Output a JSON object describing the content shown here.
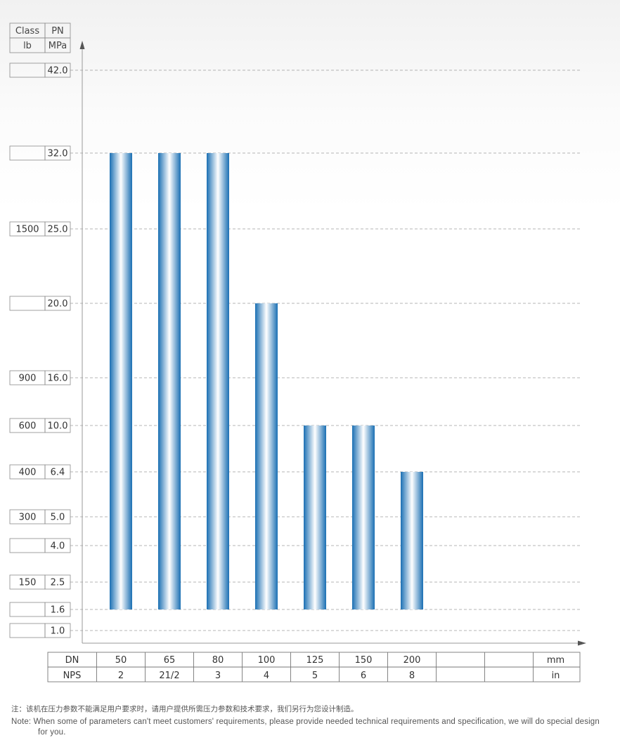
{
  "chart_data": {
    "type": "bar",
    "header": {
      "class_label": "Class",
      "lb_label": "lb",
      "pn_label": "PN",
      "mpa_label": "MPa"
    },
    "y_ticks": [
      {
        "pn": "42.0",
        "class": ""
      },
      {
        "pn": "32.0",
        "class": ""
      },
      {
        "pn": "25.0",
        "class": "1500"
      },
      {
        "pn": "20.0",
        "class": ""
      },
      {
        "pn": "16.0",
        "class": "900"
      },
      {
        "pn": "10.0",
        "class": "600"
      },
      {
        "pn": "6.4",
        "class": "400"
      },
      {
        "pn": "5.0",
        "class": "300"
      },
      {
        "pn": "4.0",
        "class": ""
      },
      {
        "pn": "2.5",
        "class": "150"
      },
      {
        "pn": "1.6",
        "class": ""
      },
      {
        "pn": "1.0",
        "class": ""
      }
    ],
    "categories": [
      "50",
      "65",
      "80",
      "100",
      "125",
      "150",
      "200"
    ],
    "series": [
      {
        "min": [
          1.6,
          1.6,
          1.6,
          1.6,
          1.6,
          1.6,
          1.6
        ],
        "max": [
          32.0,
          32.0,
          32.0,
          20.0,
          10.0,
          10.0,
          6.4
        ]
      }
    ],
    "dn_row": {
      "label": "DN",
      "values": [
        "50",
        "65",
        "80",
        "100",
        "125",
        "150",
        "200",
        "",
        ""
      ],
      "unit": "mm"
    },
    "nps_row": {
      "label": "NPS",
      "values": [
        "2",
        "21/2",
        "3",
        "4",
        "5",
        "6",
        "8",
        "",
        ""
      ],
      "unit": "in"
    },
    "bar_colors": {
      "dark": "#1a6fb3",
      "light": "#ffffff"
    },
    "grid": true
  },
  "note": {
    "zh": "注：该机在压力参数不能满足用户要求时，请用户提供所需压力参数和技术要求，我们另行为您设计制造。",
    "en": "Note: When some of parameters can't meet customers' requirements, please provide needed technical requirements and specification, we will do special design for you."
  }
}
